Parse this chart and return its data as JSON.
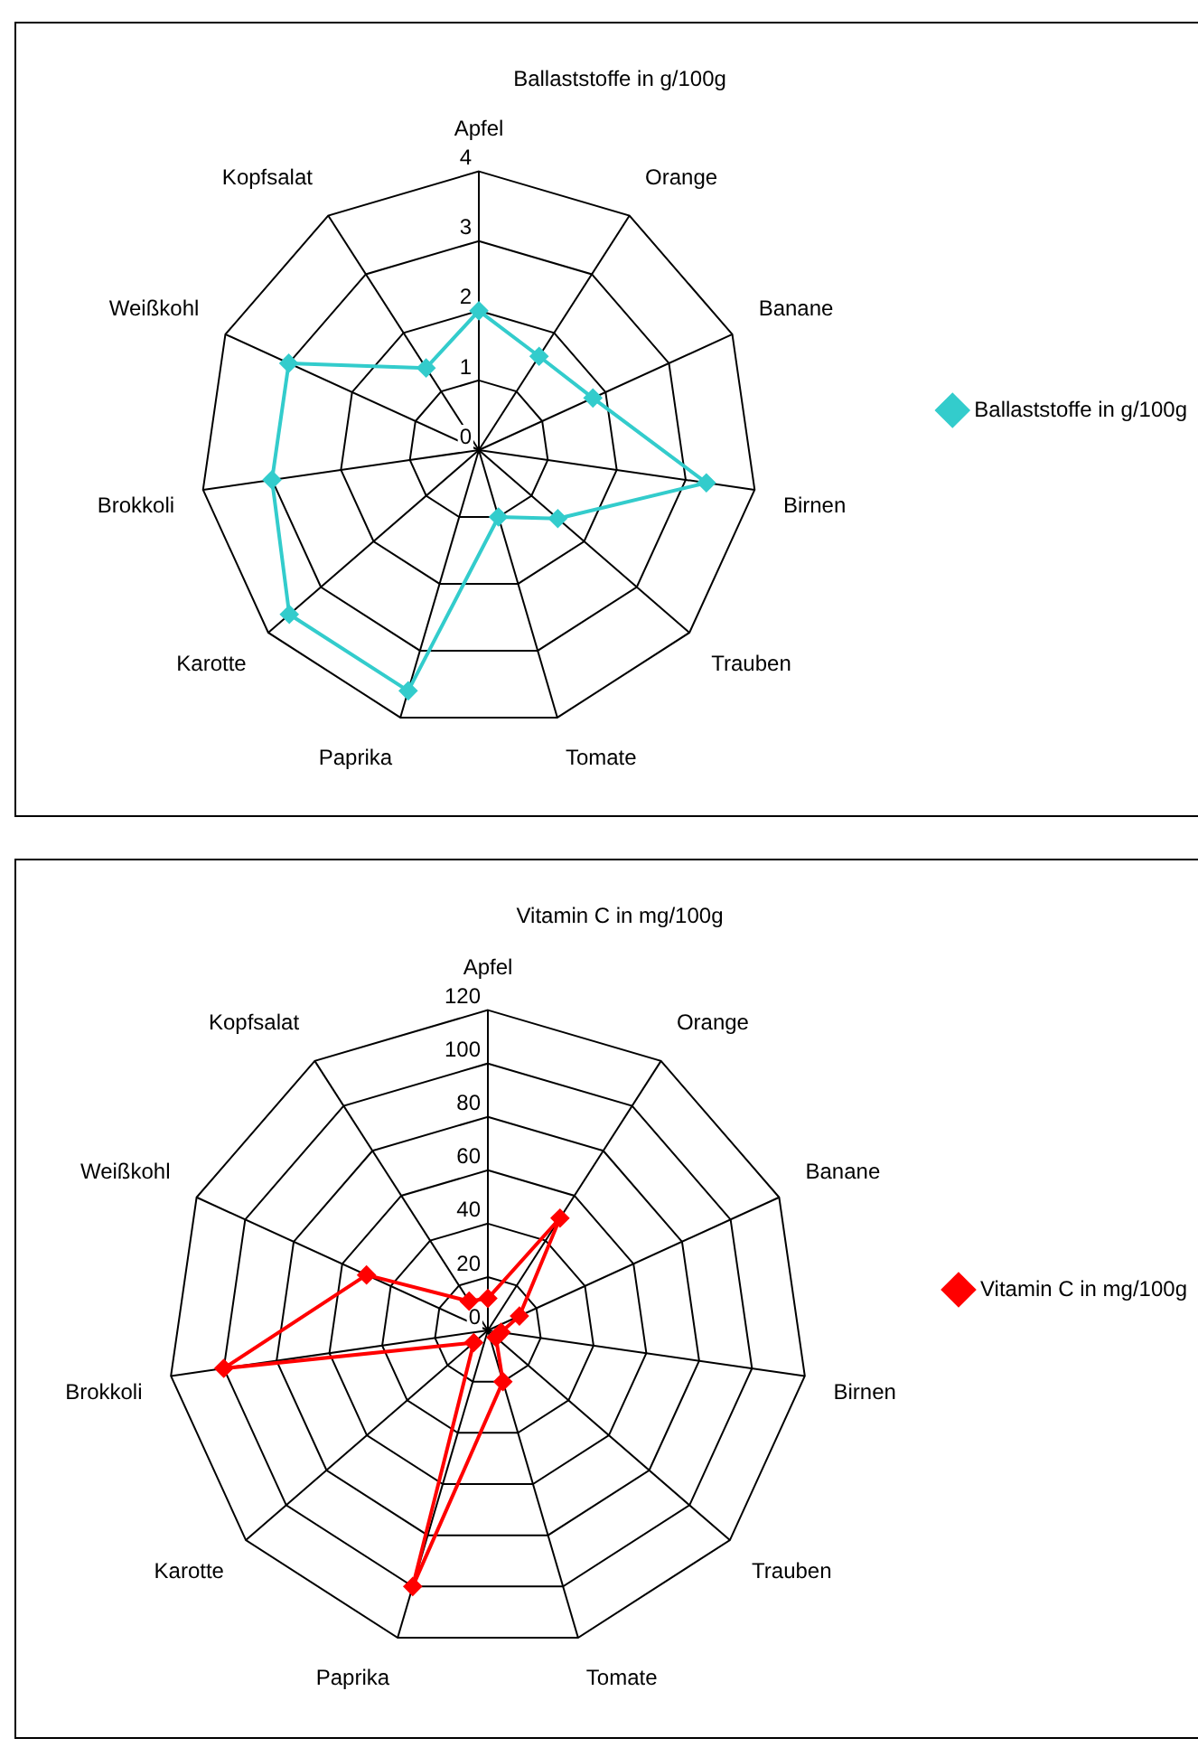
{
  "chart_data": [
    {
      "type": "radar",
      "title": "Ballaststoffe in g/100g",
      "categories": [
        "Apfel",
        "Orange",
        "Banane",
        "Birnen",
        "Trauben",
        "Tomate",
        "Paprika",
        "Karotte",
        "Brokkoli",
        "Weißkohl",
        "Kopfsalat"
      ],
      "series": [
        {
          "name": "Ballaststoffe in g/100g",
          "color": "#33cccc",
          "values": [
            2.0,
            1.6,
            1.8,
            3.3,
            1.5,
            1.0,
            3.6,
            3.6,
            3.0,
            3.0,
            1.4
          ]
        }
      ],
      "ylim": [
        0,
        4
      ],
      "yticks": [
        0,
        1,
        2,
        3,
        4
      ],
      "grid": true,
      "legend": "right",
      "marker": "diamond"
    },
    {
      "type": "radar",
      "title": "Vitamin C in mg/100g",
      "categories": [
        "Apfel",
        "Orange",
        "Banane",
        "Birnen",
        "Trauben",
        "Tomate",
        "Paprika",
        "Karotte",
        "Brokkoli",
        "Weißkohl",
        "Kopfsalat"
      ],
      "series": [
        {
          "name": "Vitamin C in mg/100g",
          "color": "#ff0000",
          "values": [
            12,
            50,
            13,
            5,
            4,
            20,
            100,
            7,
            100,
            50,
            13
          ]
        }
      ],
      "ylim": [
        0,
        120
      ],
      "yticks": [
        0,
        20,
        40,
        60,
        80,
        100,
        120
      ],
      "grid": true,
      "legend": "right",
      "marker": "diamond"
    }
  ]
}
